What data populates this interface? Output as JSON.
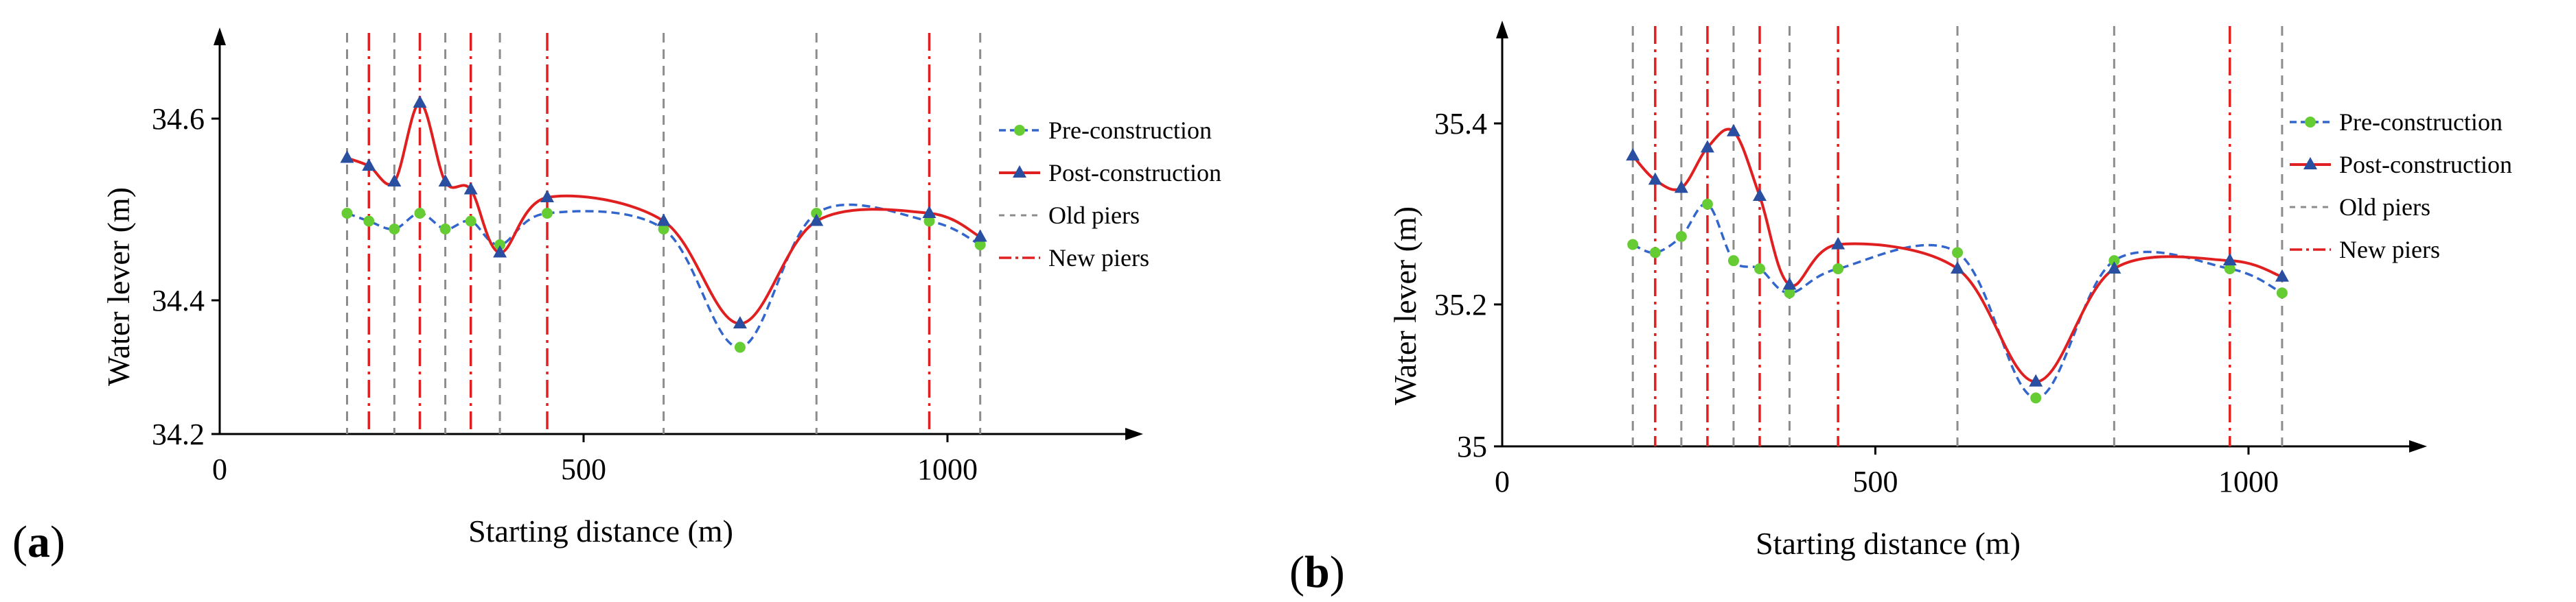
{
  "chart_data": [
    {
      "panel": "(a)",
      "panel_letter": "a",
      "type": "line",
      "xlabel": "Starting distance (m)",
      "ylabel": "Water lever (m)",
      "xlim": [
        0,
        1300
      ],
      "ylim": [
        34.2,
        34.72
      ],
      "x_ticks": [
        0,
        500,
        1000
      ],
      "y_ticks": [
        34.2,
        34.4,
        34.6
      ],
      "y_tick_labels": [
        "34.2",
        "34.4",
        "34.6"
      ],
      "x_tick_labels": [
        "0",
        "500",
        "1000"
      ],
      "old_piers": [
        175,
        240,
        310,
        385,
        610,
        820,
        1045
      ],
      "new_piers": [
        205,
        275,
        345,
        450,
        975
      ],
      "series": [
        {
          "name": "Pre-construction",
          "color": "#3366cc",
          "marker_color": "#66cc33",
          "line_style": "dashed",
          "marker": "circle",
          "points": [
            [
              175,
              34.48
            ],
            [
              205,
              34.47
            ],
            [
              240,
              34.46
            ],
            [
              275,
              34.48
            ],
            [
              310,
              34.46
            ],
            [
              345,
              34.47
            ],
            [
              385,
              34.44
            ],
            [
              450,
              34.48
            ],
            [
              610,
              34.46
            ],
            [
              715,
              34.31
            ],
            [
              820,
              34.48
            ],
            [
              975,
              34.47
            ],
            [
              1045,
              34.44
            ]
          ]
        },
        {
          "name": "Post-construction",
          "color": "#e02020",
          "marker_color": "#2a4fa0",
          "line_style": "solid",
          "marker": "triangle",
          "points": [
            [
              175,
              34.55
            ],
            [
              205,
              34.54
            ],
            [
              240,
              34.52
            ],
            [
              275,
              34.62
            ],
            [
              310,
              34.52
            ],
            [
              345,
              34.51
            ],
            [
              385,
              34.43
            ],
            [
              450,
              34.5
            ],
            [
              610,
              34.47
            ],
            [
              715,
              34.34
            ],
            [
              820,
              34.47
            ],
            [
              975,
              34.48
            ],
            [
              1045,
              34.45
            ]
          ]
        }
      ],
      "legend": [
        {
          "label": "Pre-construction",
          "kind": "pre"
        },
        {
          "label": "Post-construction",
          "kind": "post"
        },
        {
          "label": "Old piers",
          "kind": "old"
        },
        {
          "label": "New piers",
          "kind": "new"
        }
      ]
    },
    {
      "panel": "(b)",
      "panel_letter": "b",
      "type": "line",
      "xlabel": "Starting distance (m)",
      "ylabel": "Water lever (m)",
      "xlim": [
        0,
        1300
      ],
      "ylim": [
        35.0,
        35.53
      ],
      "x_ticks": [
        0,
        500,
        1000
      ],
      "y_ticks": [
        35.0,
        35.2,
        35.4
      ],
      "y_tick_labels": [
        "35",
        "35.2",
        "35.4"
      ],
      "x_tick_labels": [
        "0",
        "500",
        "1000"
      ],
      "old_piers": [
        175,
        240,
        310,
        385,
        610,
        820,
        1045
      ],
      "new_piers": [
        205,
        275,
        345,
        450,
        975
      ],
      "series": [
        {
          "name": "Pre-construction",
          "color": "#3366cc",
          "marker_color": "#66cc33",
          "line_style": "dashed",
          "marker": "circle",
          "points": [
            [
              175,
              35.25
            ],
            [
              205,
              35.24
            ],
            [
              240,
              35.26
            ],
            [
              275,
              35.3
            ],
            [
              310,
              35.23
            ],
            [
              345,
              35.22
            ],
            [
              385,
              35.19
            ],
            [
              450,
              35.22
            ],
            [
              610,
              35.24
            ],
            [
              715,
              35.06
            ],
            [
              820,
              35.23
            ],
            [
              975,
              35.22
            ],
            [
              1045,
              35.19
            ]
          ]
        },
        {
          "name": "Post-construction",
          "color": "#e02020",
          "marker_color": "#2a4fa0",
          "line_style": "solid",
          "marker": "triangle",
          "points": [
            [
              175,
              35.36
            ],
            [
              205,
              35.33
            ],
            [
              240,
              35.32
            ],
            [
              275,
              35.37
            ],
            [
              310,
              35.39
            ],
            [
              345,
              35.31
            ],
            [
              385,
              35.2
            ],
            [
              450,
              35.25
            ],
            [
              610,
              35.22
            ],
            [
              715,
              35.08
            ],
            [
              820,
              35.22
            ],
            [
              975,
              35.23
            ],
            [
              1045,
              35.21
            ]
          ]
        }
      ],
      "legend": [
        {
          "label": "Pre-construction",
          "kind": "pre"
        },
        {
          "label": "Post-construction",
          "kind": "post"
        },
        {
          "label": "Old piers",
          "kind": "old"
        },
        {
          "label": "New piers",
          "kind": "new"
        }
      ]
    }
  ],
  "colors": {
    "old_pier": "#8c8c8c",
    "new_pier": "#e02020",
    "axis": "#000000"
  }
}
